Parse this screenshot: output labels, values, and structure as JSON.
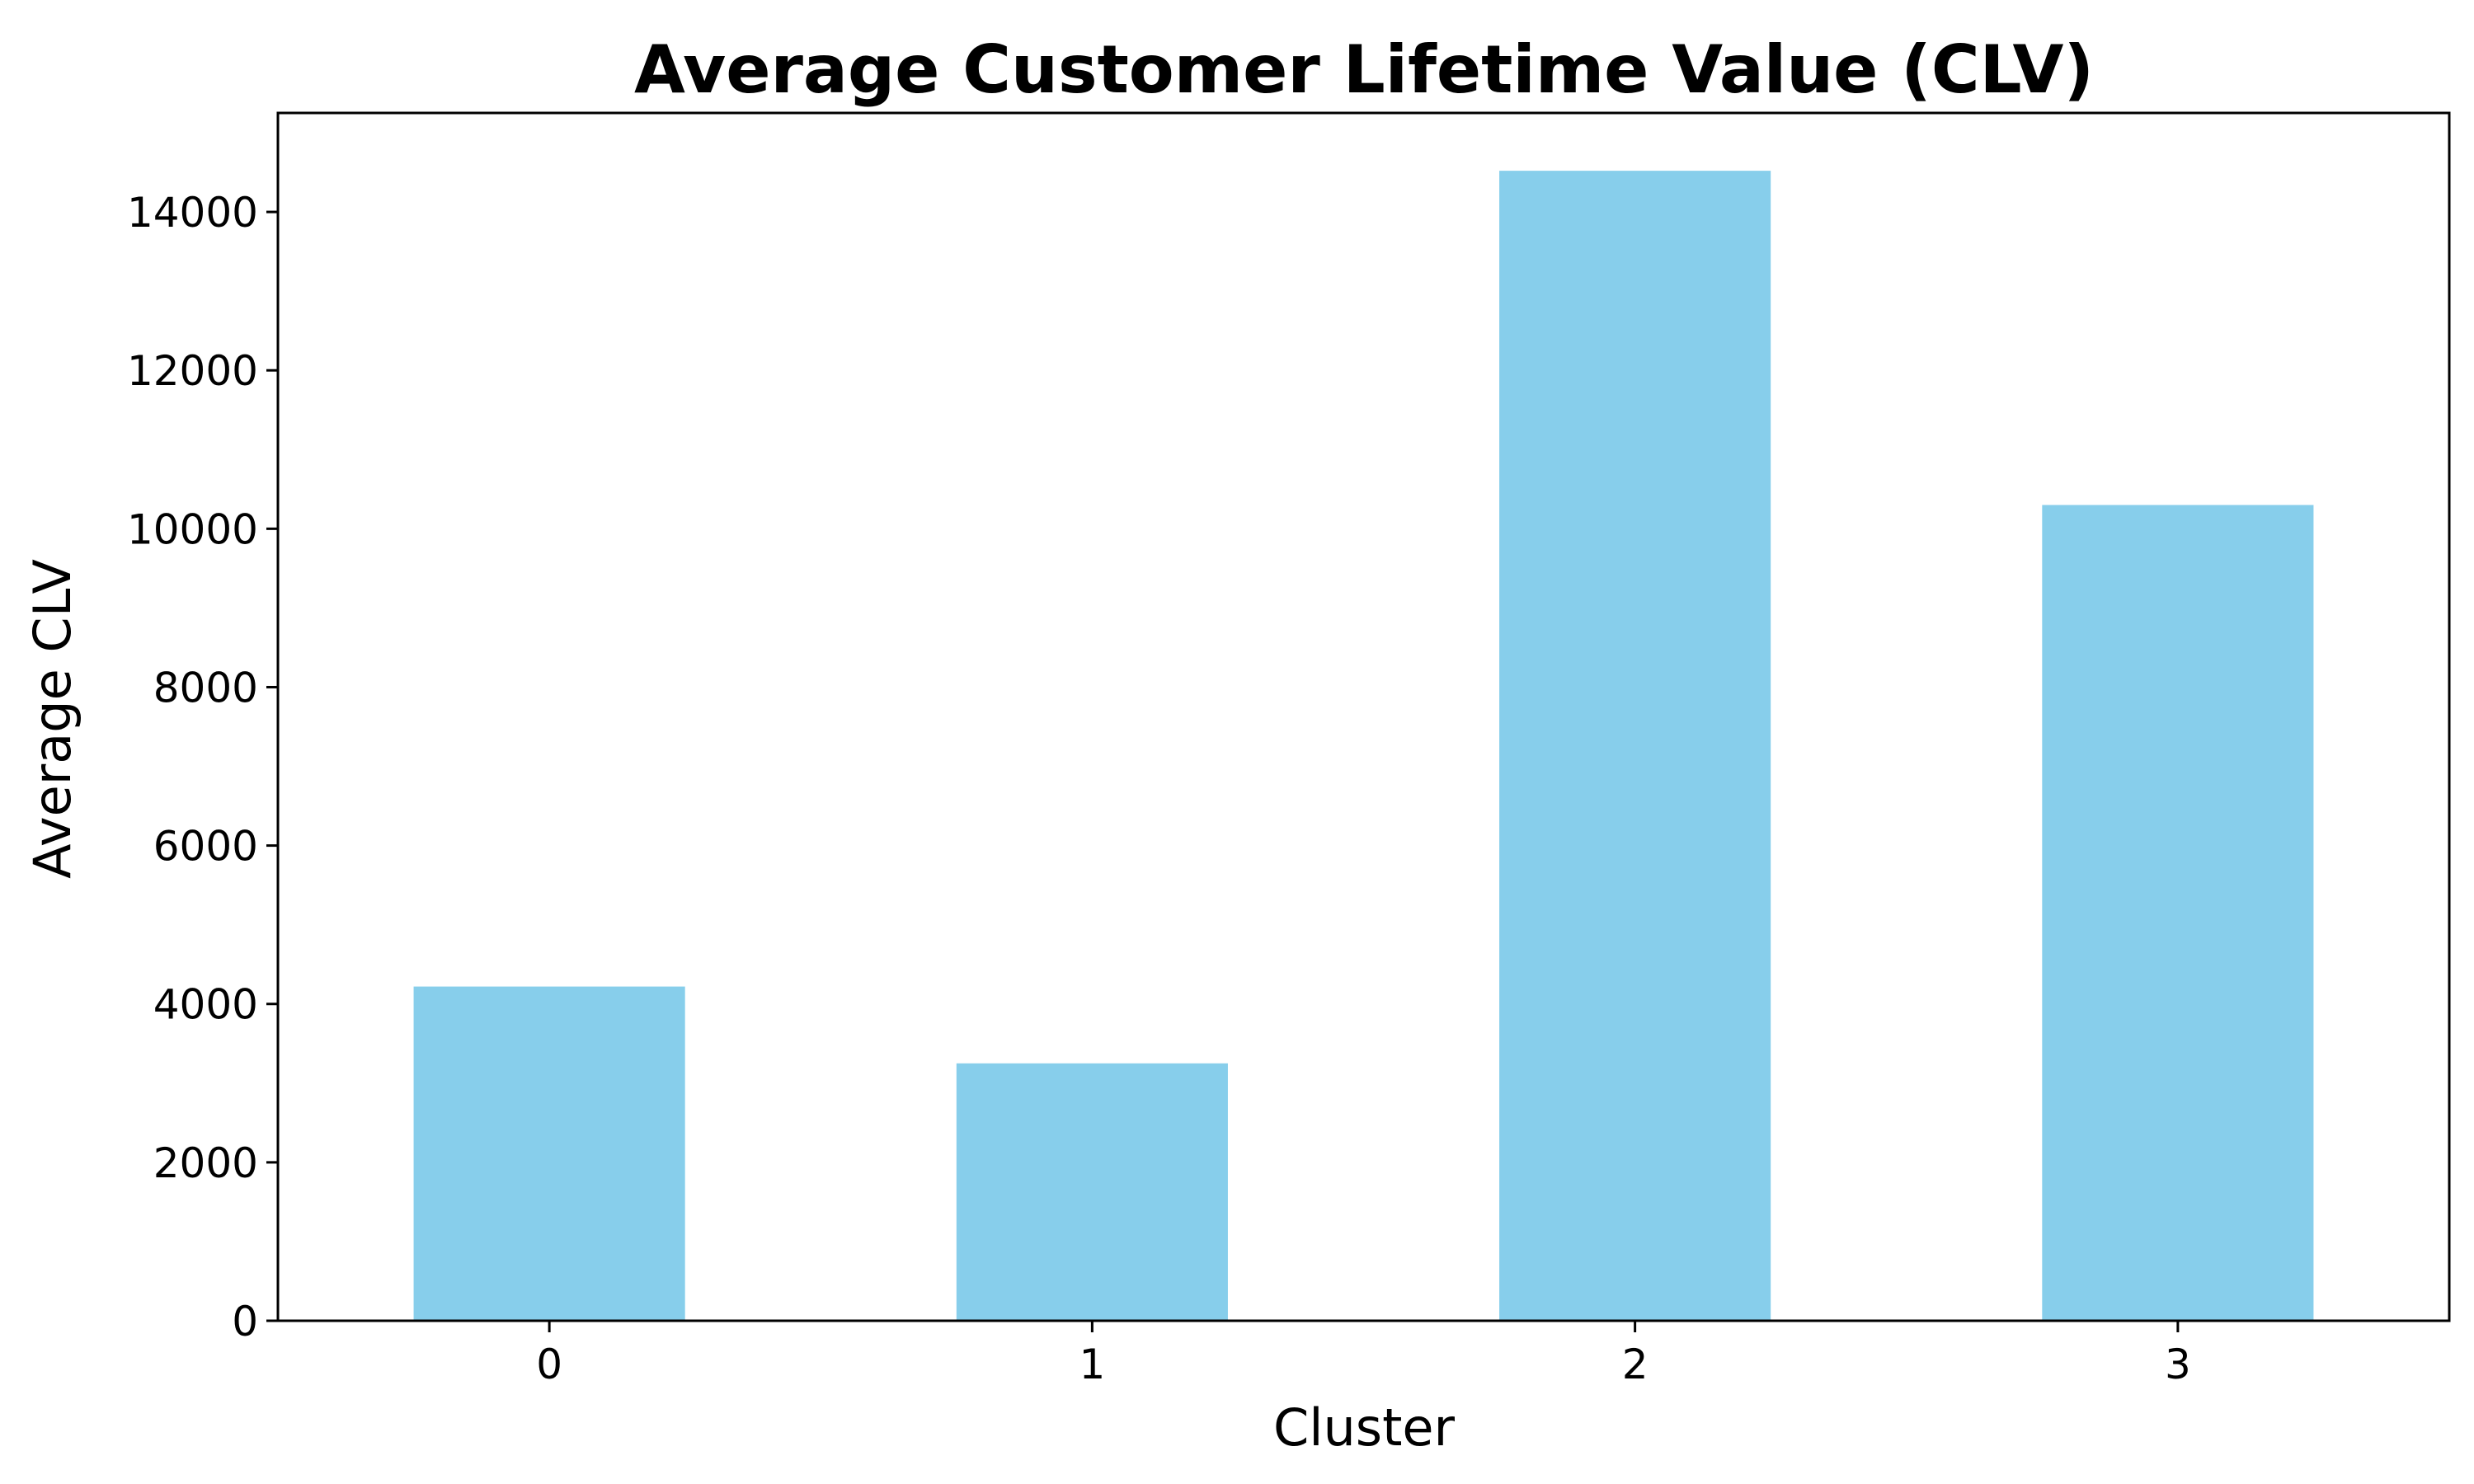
{
  "chart_data": {
    "type": "bar",
    "title": "Average Customer Lifetime Value (CLV)",
    "xlabel": "Cluster",
    "ylabel": "Average CLV",
    "categories": [
      "0",
      "1",
      "2",
      "3"
    ],
    "values": [
      4220,
      3250,
      14520,
      10300
    ],
    "ylim": [
      0,
      15250
    ],
    "yticks": [
      0,
      2000,
      4000,
      6000,
      8000,
      10000,
      12000,
      14000
    ],
    "bar_color": "#87CEEB",
    "grid": false,
    "legend": "none"
  }
}
